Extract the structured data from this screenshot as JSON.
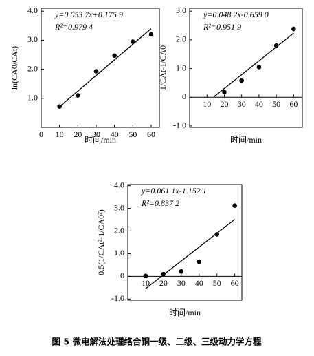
{
  "chart_data": [
    {
      "type": "scatter",
      "ylabel": "ln(CA0/CAt)",
      "xlabel": "时间/min",
      "annotations": [
        "y=0.053 7x+0.175 9",
        "R²=0.979 4"
      ],
      "x": [
        10,
        20,
        30,
        40,
        50,
        60
      ],
      "series": [
        {
          "color": "#000000",
          "values": [
            0.72,
            1.1,
            1.93,
            2.47,
            2.95,
            3.2
          ]
        },
        {
          "color": "#000000",
          "x": [
            10,
            60
          ],
          "values": [
            0.713,
            3.398
          ],
          "line": true
        }
      ],
      "xlim": [
        0,
        64.5
      ],
      "ylim": [
        0,
        4.1
      ],
      "xticks": [
        0,
        10,
        20,
        30,
        40,
        50,
        60
      ],
      "yticks": [
        {
          "value": 1,
          "label": "1.0"
        },
        {
          "value": 2,
          "label": "2.0"
        },
        {
          "value": 3,
          "label": "3.0"
        },
        {
          "value": 4,
          "label": "4.0"
        }
      ]
    },
    {
      "type": "scatter",
      "ylabel": "1/CAt-1/CA0",
      "xlabel": "时间/min",
      "annotations": [
        "y=0.048 2x-0.659 0",
        "R²=0.951 9"
      ],
      "x": [
        20,
        30,
        40,
        50,
        60
      ],
      "series": [
        {
          "color": "#000000",
          "values": [
            0.18,
            0.58,
            1.05,
            1.8,
            2.38
          ]
        },
        {
          "color": "#000000",
          "x": [
            14,
            60
          ],
          "values": [
            0.016,
            2.233
          ],
          "line": true
        }
      ],
      "xlim": [
        0,
        65
      ],
      "ylim": [
        -1.05,
        3.1
      ],
      "xticks": [
        10,
        20,
        30,
        40,
        50,
        60
      ],
      "yticks": [
        {
          "value": -1,
          "label": "-1.0"
        },
        0,
        {
          "value": 1,
          "label": "1.0"
        },
        {
          "value": 2,
          "label": "2.0"
        },
        {
          "value": 3,
          "label": "3.0"
        }
      ]
    },
    {
      "type": "scatter",
      "ylabel": "0.5(1/CAt²-1/CA0²)",
      "xlabel": "时间/min",
      "annotations": [
        "y=0.061 1x-1.152 1",
        "R²=0.837 2"
      ],
      "x": [
        10,
        20,
        30,
        40,
        50,
        60
      ],
      "series": [
        {
          "color": "#000000",
          "values": [
            0.02,
            0.1,
            0.22,
            0.65,
            1.85,
            3.12
          ]
        },
        {
          "color": "#000000",
          "x": [
            10,
            60
          ],
          "values": [
            -0.541,
            2.514
          ],
          "line": true
        }
      ],
      "xlim": [
        0,
        64
      ],
      "ylim": [
        -1.05,
        4.05
      ],
      "xticks": [
        10,
        20,
        30,
        40,
        50,
        60
      ],
      "yticks": [
        {
          "value": -1,
          "label": "-1.0"
        },
        0,
        {
          "value": 1,
          "label": "1.0"
        },
        {
          "value": 2,
          "label": "2.0"
        },
        {
          "value": 3,
          "label": "3.0"
        },
        {
          "value": 4,
          "label": "4.0"
        }
      ]
    }
  ],
  "caption": "图 5   微电解法处理络合铜一级、二级、三级动力学方程"
}
